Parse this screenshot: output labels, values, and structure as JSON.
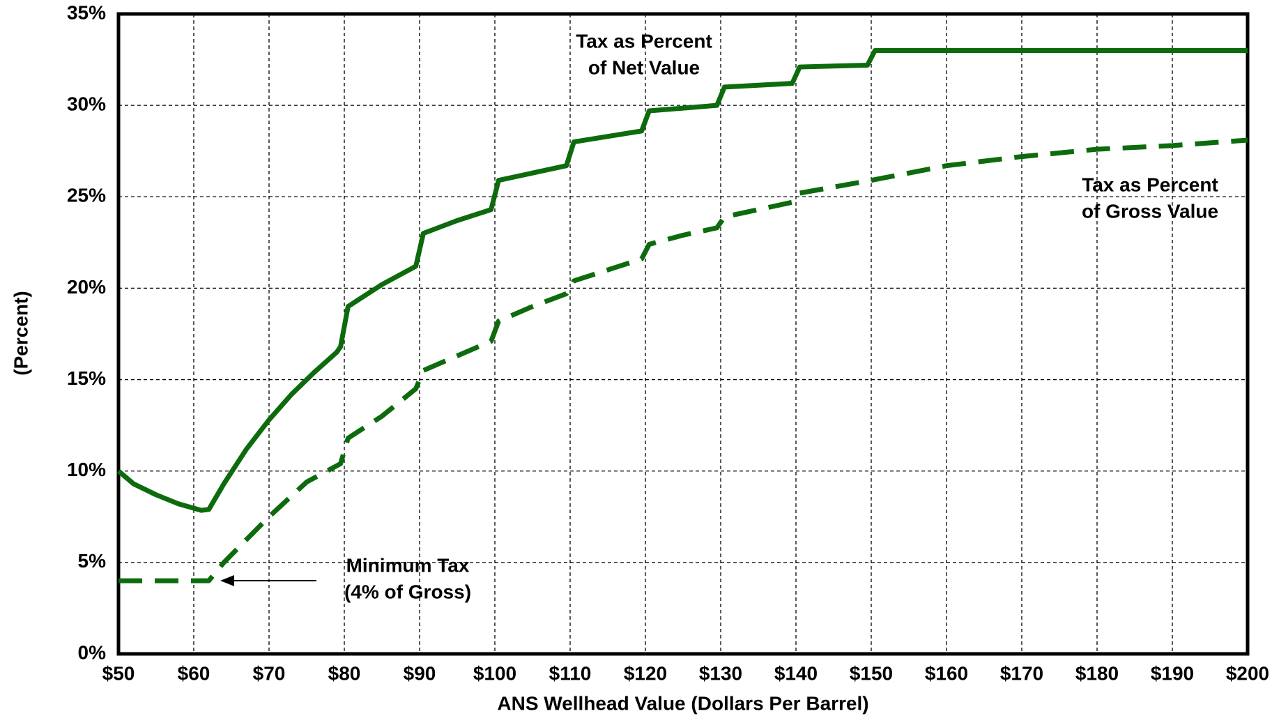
{
  "chart_data": {
    "type": "line",
    "xlabel": "ANS Wellhead Value (Dollars Per Barrel)",
    "ylabel": "(Percent)",
    "xlim": [
      50,
      200
    ],
    "ylim": [
      0,
      35
    ],
    "xticks": [
      {
        "value": 50,
        "label": "$50"
      },
      {
        "value": 60,
        "label": "$60"
      },
      {
        "value": 70,
        "label": "$70"
      },
      {
        "value": 80,
        "label": "$80"
      },
      {
        "value": 90,
        "label": "$90"
      },
      {
        "value": 100,
        "label": "$100"
      },
      {
        "value": 110,
        "label": "$110"
      },
      {
        "value": 120,
        "label": "$120"
      },
      {
        "value": 130,
        "label": "$130"
      },
      {
        "value": 140,
        "label": "$140"
      },
      {
        "value": 150,
        "label": "$150"
      },
      {
        "value": 160,
        "label": "$160"
      },
      {
        "value": 170,
        "label": "$170"
      },
      {
        "value": 180,
        "label": "$180"
      },
      {
        "value": 190,
        "label": "$190"
      },
      {
        "value": 200,
        "label": "$200"
      }
    ],
    "yticks": [
      {
        "value": 0,
        "label": "0%"
      },
      {
        "value": 5,
        "label": "5%"
      },
      {
        "value": 10,
        "label": "10%"
      },
      {
        "value": 15,
        "label": "15%"
      },
      {
        "value": 20,
        "label": "20%"
      },
      {
        "value": 25,
        "label": "25%"
      },
      {
        "value": 30,
        "label": "30%"
      },
      {
        "value": 35,
        "label": "35%"
      }
    ],
    "grid": true,
    "series": [
      {
        "name": "Tax as Percent of Net Value",
        "color": "#0d6b0d",
        "dash": false,
        "x": [
          50,
          52,
          55,
          58,
          61,
          62,
          64,
          67,
          70,
          73,
          76,
          79,
          79.5,
          80.5,
          85,
          89.5,
          90.5,
          95,
          99.5,
          100.5,
          105,
          109.5,
          110.5,
          115,
          119.5,
          120.5,
          125,
          129.5,
          130.5,
          135,
          139.5,
          140.5,
          145,
          149.5,
          150.5,
          200
        ],
        "values": [
          10,
          9.3,
          8.7,
          8.2,
          7.85,
          7.9,
          9.3,
          11.2,
          12.8,
          14.2,
          15.4,
          16.5,
          16.8,
          19,
          20.2,
          21.2,
          23,
          23.7,
          24.3,
          25.9,
          26.3,
          26.7,
          28,
          28.3,
          28.6,
          29.7,
          29.85,
          30,
          31,
          31.1,
          31.2,
          32.1,
          32.15,
          32.2,
          33,
          33
        ]
      },
      {
        "name": "Tax as Percent of Gross Value",
        "color": "#0d6b0d",
        "dash": true,
        "x": [
          50,
          62,
          64,
          70,
          75,
          79.5,
          80.5,
          85,
          89.5,
          90.5,
          95,
          99.5,
          100.5,
          105,
          109.5,
          110.5,
          115,
          119.5,
          120.5,
          125,
          129.5,
          130.5,
          135,
          139.5,
          140.5,
          150,
          160,
          170,
          180,
          190,
          200
        ],
        "values": [
          4,
          4,
          5,
          7.5,
          9.4,
          10.4,
          11.8,
          13,
          14.5,
          15.5,
          16.3,
          17.1,
          18.2,
          19,
          19.7,
          20.4,
          21,
          21.6,
          22.4,
          22.9,
          23.3,
          23.9,
          24.3,
          24.7,
          25.2,
          25.9,
          26.7,
          27.2,
          27.6,
          27.8,
          28.1
        ]
      }
    ],
    "annotations": [
      {
        "lines": [
          "Tax as Percent",
          "of Net Value"
        ]
      },
      {
        "lines": [
          "Tax as Percent",
          "of Gross Value"
        ]
      },
      {
        "lines": [
          "Minimum Tax",
          "(4% of Gross)"
        ]
      }
    ]
  }
}
